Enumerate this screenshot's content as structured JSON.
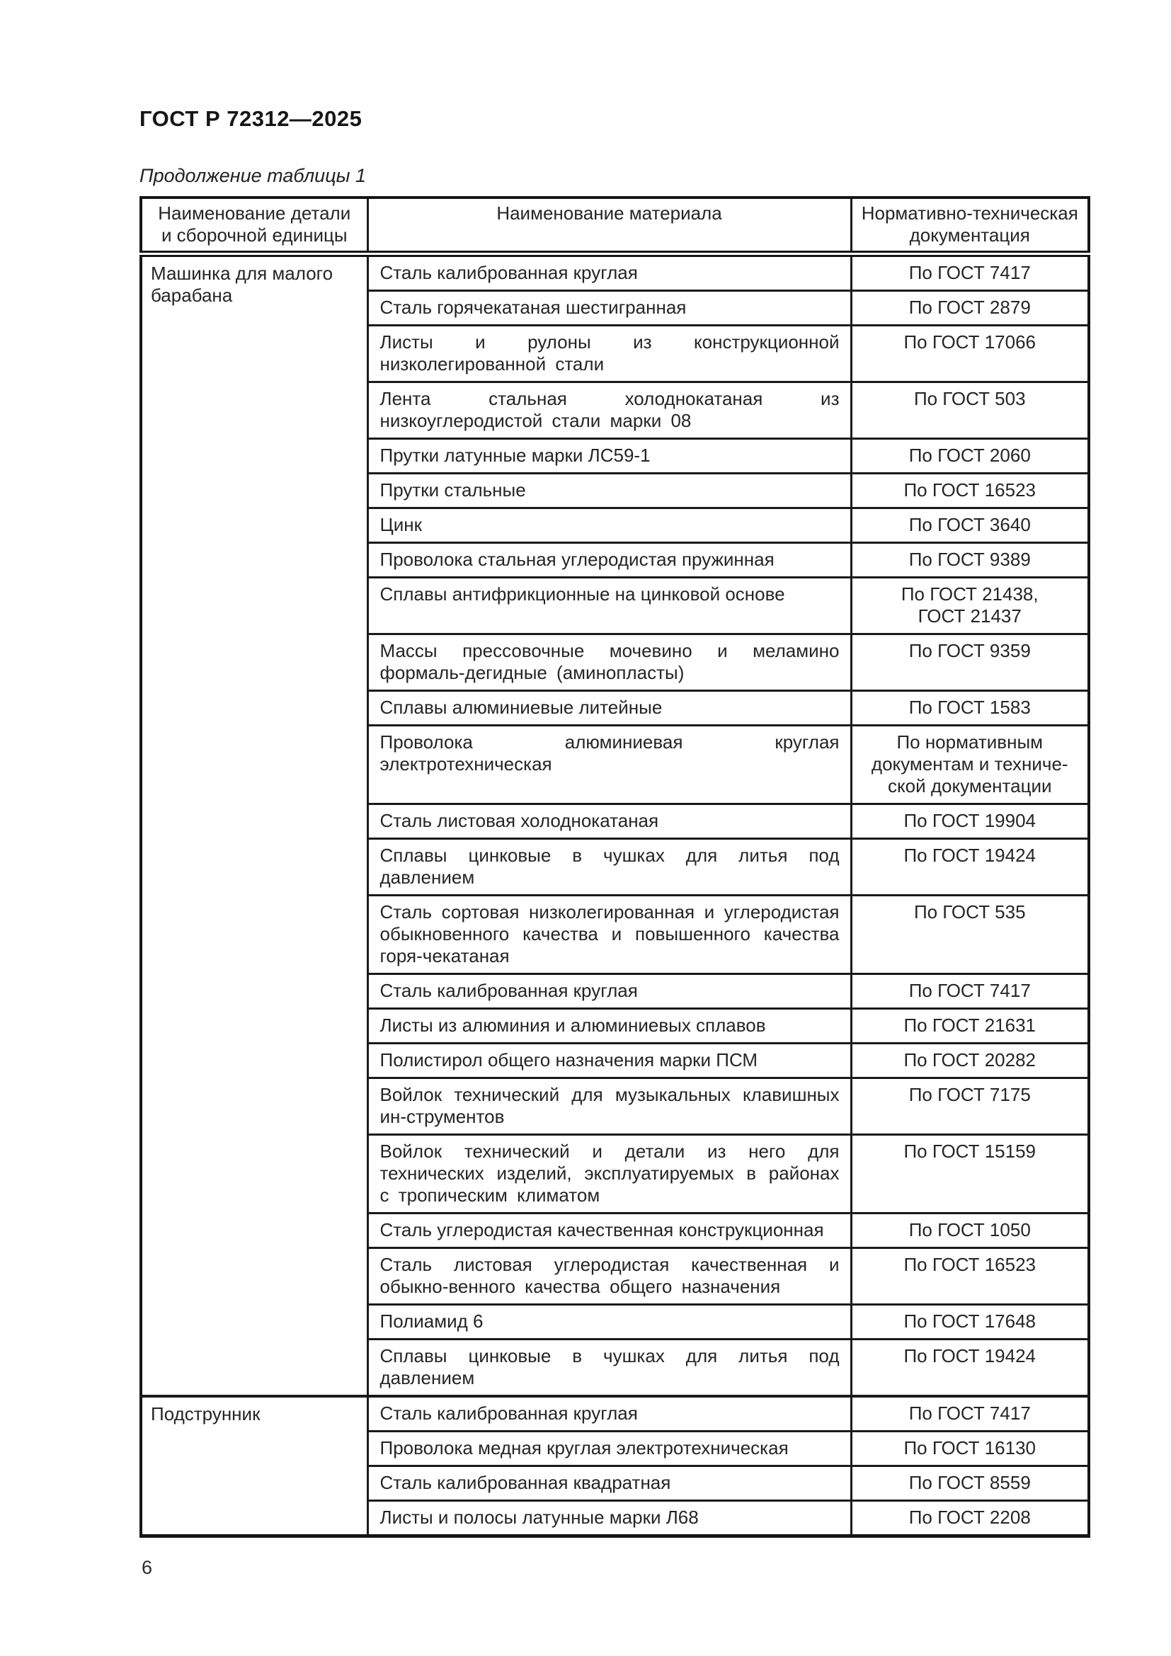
{
  "page": {
    "standard": "ГОСТ Р 72312—2025",
    "caption": "Продолжение таблицы 1",
    "page_number": "6"
  },
  "table": {
    "headers": [
      "Наименование детали\nи сборочной единицы",
      "Наименование материала",
      "Нормативно-техническая\nдокументация"
    ],
    "groups": [
      {
        "part": "Машинка для малого барабана",
        "rows": [
          {
            "material": "Сталь калиброванная круглая",
            "doc": "По ГОСТ 7417"
          },
          {
            "material": "Сталь горячекатаная шестигранная",
            "doc": "По ГОСТ 2879"
          },
          {
            "material": "Листы и рулоны из конструкционной низколегированной стали",
            "doc": "По ГОСТ 17066"
          },
          {
            "material": "Лента стальная холоднокатаная из низкоуглеродистой стали марки 08",
            "doc": "По ГОСТ 503"
          },
          {
            "material": "Прутки латунные марки ЛС59-1",
            "doc": "По ГОСТ 2060"
          },
          {
            "material": "Прутки стальные",
            "doc": "По ГОСТ 16523"
          },
          {
            "material": "Цинк",
            "doc": "По ГОСТ 3640"
          },
          {
            "material": "Проволока стальная углеродистая пружинная",
            "doc": "По ГОСТ 9389"
          },
          {
            "material": "Сплавы антифрикционные на цинковой основе",
            "doc": "По ГОСТ 21438,\nГОСТ 21437"
          },
          {
            "material": "Массы прессовочные мочевино и меламино формаль-дегидные (аминопласты)",
            "doc": "По ГОСТ 9359"
          },
          {
            "material": "Сплавы алюминиевые литейные",
            "doc": "По ГОСТ 1583"
          },
          {
            "material": "Проволока алюминиевая круглая электротехническая",
            "doc": "По нормативным\nдокументам и техниче-\nской документации"
          },
          {
            "material": "Сталь листовая холоднокатаная",
            "doc": "По ГОСТ 19904"
          },
          {
            "material": "Сплавы цинковые в чушках для литья под давлением",
            "doc": "По ГОСТ 19424"
          },
          {
            "material": "Сталь сортовая низколегированная и углеродистая обыкновенного качества и повышенного качества горя-чекатаная",
            "doc": "По ГОСТ 535"
          },
          {
            "material": "Сталь калиброванная круглая",
            "doc": "По ГОСТ 7417"
          },
          {
            "material": "Листы из алюминия и алюминиевых сплавов",
            "doc": "По ГОСТ 21631"
          },
          {
            "material": "Полистирол общего назначения марки ПСМ",
            "doc": "По ГОСТ 20282"
          },
          {
            "material": "Войлок технический для музыкальных клавишных ин-струментов",
            "doc": "По ГОСТ 7175"
          },
          {
            "material": "Войлок технический и детали из него для технических изделий, эксплуатируемых в районах с тропическим климатом",
            "doc": "По ГОСТ 15159"
          },
          {
            "material": "Сталь углеродистая качественная конструкционная",
            "doc": "По ГОСТ 1050"
          },
          {
            "material": "Сталь листовая углеродистая качественная и обыкно-венного качества общего назначения",
            "doc": "По ГОСТ 16523"
          },
          {
            "material": "Полиамид 6",
            "doc": "По ГОСТ 17648"
          },
          {
            "material": "Сплавы цинковые в чушках для литья под давлением",
            "doc": "По ГОСТ 19424"
          }
        ]
      },
      {
        "part": "Подструнник",
        "rows": [
          {
            "material": "Сталь калиброванная круглая",
            "doc": "По ГОСТ 7417"
          },
          {
            "material": "Проволока медная круглая электротехническая",
            "doc": "По ГОСТ 16130"
          },
          {
            "material": "Сталь калиброванная квадратная",
            "doc": "По ГОСТ 8559"
          },
          {
            "material": "Листы и полосы латунные марки Л68",
            "doc": "По ГОСТ 2208"
          }
        ]
      }
    ]
  }
}
